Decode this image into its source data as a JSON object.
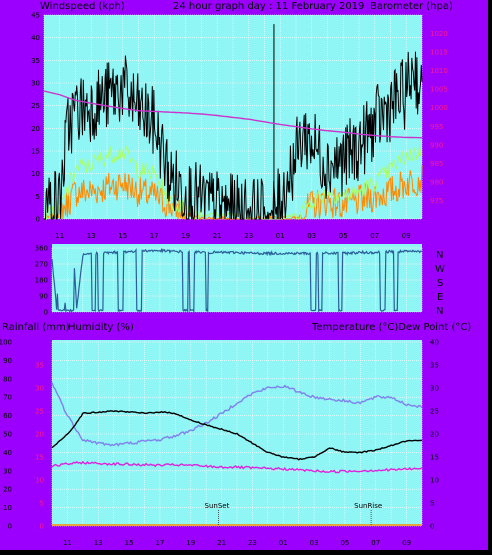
{
  "titles": {
    "top_left": "Windspeed (kph)",
    "top_center": "24 hour graph day : 11 February 2019",
    "top_right": "Barometer (hpa)",
    "mid_left_rain": "Rainfall (mm)",
    "mid_left_hum": "Humidity (%)",
    "mid_right": "Temperature (°C)Dew Point (°C)"
  },
  "colors": {
    "background": "#9b00ff",
    "plot": "#8ff5f5",
    "grid": "#ffffff",
    "wind_gust": "#000000",
    "wind_avg": "#aaff66",
    "wind_avg2": "#ff8a00",
    "barometer": "#cc33cc",
    "direction": "#2a5f9a",
    "temperature": "#000000",
    "dewpoint": "#dd22dd",
    "humidity": "#8080ee",
    "rainfall": "#ff8a00",
    "left_axis_pink": "#ff1a8c"
  },
  "hour_ticks": [
    "11",
    "13",
    "15",
    "17",
    "19",
    "21",
    "23",
    "01",
    "03",
    "05",
    "07",
    "09"
  ],
  "direction_labels": [
    "N",
    "W",
    "S",
    "E",
    "N"
  ],
  "dir_tick_labels": [
    "360",
    "270",
    "180",
    "90",
    "0"
  ],
  "sun": {
    "sunset": "SunSet",
    "sunrise": "SunRise"
  },
  "chart_data": [
    {
      "type": "line",
      "name": "wind",
      "y_left_label": "Windspeed (kph)",
      "y_right_label": "Barometer (hpa)",
      "y_left_range": [
        0,
        45
      ],
      "y_left_ticks": [
        "0",
        "5",
        "10",
        "15",
        "20",
        "25",
        "30",
        "35",
        "40",
        "45"
      ],
      "y_right_range": [
        970,
        1025
      ],
      "y_right_ticks": [
        "975",
        "980",
        "985",
        "990",
        "995",
        "1000",
        "1005",
        "1010",
        "1015",
        "1020"
      ],
      "x_range_hours": [
        0,
        24
      ],
      "x_start_hour": 10,
      "gust_profile": {
        "hours": [
          0,
          1,
          1.5,
          2,
          3,
          4,
          5,
          6,
          7,
          8,
          9,
          10,
          11,
          12,
          13,
          14,
          14.5,
          15,
          16,
          16.5,
          17,
          18,
          19,
          20,
          21,
          22,
          23,
          23.5,
          24
        ],
        "kph": [
          3,
          4,
          20,
          24,
          25,
          27,
          29,
          24,
          21,
          9,
          6,
          4,
          3,
          2,
          2,
          1,
          1,
          4,
          14,
          19,
          17,
          12,
          13,
          16,
          21,
          25,
          28,
          34,
          26
        ]
      },
      "gust_spike": {
        "hour": 14.6,
        "kph": 43
      },
      "avg_profile": {
        "hours": [
          0,
          1,
          2,
          3,
          4,
          5,
          6,
          7,
          8,
          9,
          10,
          11,
          12,
          13,
          14,
          15,
          16,
          17,
          18,
          19,
          20,
          21,
          22,
          23,
          24
        ],
        "kph": [
          1,
          2,
          11,
          12,
          14,
          15,
          11,
          10,
          4,
          2,
          1,
          1,
          1,
          0,
          0,
          0,
          1,
          4,
          6,
          5,
          6,
          8,
          11,
          14,
          15
        ]
      },
      "avg2_profile": {
        "hours": [
          0,
          1,
          2,
          3,
          4,
          5,
          6,
          7,
          8,
          9,
          10,
          11,
          12,
          13,
          14,
          15,
          16,
          17,
          18,
          19,
          20,
          21,
          22,
          23,
          24
        ],
        "kph": [
          0,
          1,
          6,
          6,
          7,
          8,
          6,
          5,
          3,
          1,
          0,
          0,
          0,
          0,
          0,
          0,
          0,
          3,
          4,
          3,
          4,
          5,
          6,
          8,
          9
        ]
      },
      "barometer": {
        "hours": [
          0,
          1,
          2,
          3,
          4,
          5,
          6,
          7,
          8,
          9,
          10,
          11,
          12,
          13,
          14,
          15,
          16,
          17,
          18,
          19,
          20,
          21,
          22,
          23,
          24
        ],
        "hpa": [
          1004.5,
          1003.5,
          1002,
          1001.2,
          1000.5,
          999.8,
          999.2,
          999,
          998.8,
          998.6,
          998.3,
          997.9,
          997.4,
          996.9,
          996.2,
          995.5,
          994.9,
          994.3,
          993.8,
          993.4,
          992.9,
          992.5,
          992.2,
          992,
          991.9
        ]
      }
    },
    {
      "type": "line",
      "name": "direction",
      "y_range": [
        0,
        360
      ],
      "profile": {
        "hours": [
          0,
          0.3,
          0.5,
          0.8,
          1.2,
          1.4,
          1.6,
          2,
          3,
          4,
          5,
          6,
          7,
          8,
          9,
          10,
          11,
          12,
          13,
          14,
          15,
          16,
          17,
          18,
          19,
          20,
          21,
          22,
          23,
          24
        ],
        "deg": [
          300,
          20,
          330,
          60,
          40,
          330,
          20,
          320,
          330,
          335,
          340,
          345,
          345,
          340,
          340,
          335,
          335,
          335,
          330,
          330,
          330,
          330,
          330,
          330,
          330,
          335,
          335,
          340,
          340,
          340
        ]
      },
      "dips": [
        [
          0.4,
          0.8
        ],
        [
          0.9,
          1.4
        ],
        [
          2.6,
          2.8
        ],
        [
          3.0,
          3.3
        ],
        [
          4.3,
          4.6
        ],
        [
          5.5,
          5.8
        ],
        [
          8.5,
          8.8
        ],
        [
          8.95,
          9.2
        ],
        [
          10.0,
          10.1
        ],
        [
          16.8,
          17.1
        ],
        [
          17.3,
          17.5
        ],
        [
          18.6,
          18.8
        ],
        [
          21.3,
          21.6
        ],
        [
          22.2,
          22.4
        ]
      ]
    },
    {
      "type": "line",
      "name": "climate",
      "y_left_range": [
        0,
        100
      ],
      "y_left_ticks": [
        "0",
        "10",
        "20",
        "30",
        "40",
        "50",
        "60",
        "70",
        "80",
        "90",
        "100"
      ],
      "y_left_pink_ticks": [
        "0",
        "5",
        "10",
        "15",
        "20",
        "25",
        "30",
        "35"
      ],
      "y_right_range": [
        0,
        40
      ],
      "y_right_ticks": [
        "0",
        "5",
        "10",
        "15",
        "20",
        "25",
        "30",
        "35",
        "40"
      ],
      "temperature": {
        "hours": [
          0,
          1,
          1.5,
          2,
          3,
          4,
          5,
          6,
          7,
          8,
          9,
          10,
          11,
          12,
          13,
          14,
          15,
          16,
          17,
          18,
          19,
          20,
          21,
          22,
          23,
          24
        ],
        "c": [
          17,
          20,
          22,
          24.5,
          24.7,
          25,
          24.8,
          24.5,
          24.8,
          24.5,
          23,
          22,
          21,
          20,
          18,
          16,
          15,
          14.5,
          15,
          17,
          16,
          16,
          16.5,
          17.5,
          18.5,
          18.5
        ]
      },
      "dewpoint": {
        "hours": [
          0,
          1,
          2,
          3,
          4,
          5,
          6,
          7,
          8,
          9,
          10,
          11,
          12,
          13,
          14,
          15,
          16,
          17,
          18,
          19,
          20,
          21,
          22,
          23,
          24
        ],
        "c": [
          13,
          13.5,
          13.8,
          13.6,
          13.5,
          13.4,
          13.3,
          13.2,
          13.3,
          13.2,
          13,
          12.8,
          12.8,
          12.6,
          12.5,
          12.4,
          12.2,
          12,
          11.8,
          11.9,
          12,
          12.1,
          12.2,
          12.4,
          12.5
        ]
      },
      "humidity": {
        "hours": [
          0,
          1,
          2,
          3,
          4,
          5,
          6,
          7,
          8,
          9,
          10,
          11,
          12,
          13,
          14,
          15,
          16,
          17,
          18,
          19,
          20,
          21,
          22,
          23,
          24
        ],
        "pct": [
          78,
          60,
          47,
          45,
          44,
          45,
          46,
          47,
          49,
          52,
          56,
          61,
          67,
          72,
          75,
          76,
          73,
          70,
          69,
          68,
          67,
          70,
          70,
          66,
          65
        ]
      },
      "rainfall_mm": 0
    }
  ]
}
